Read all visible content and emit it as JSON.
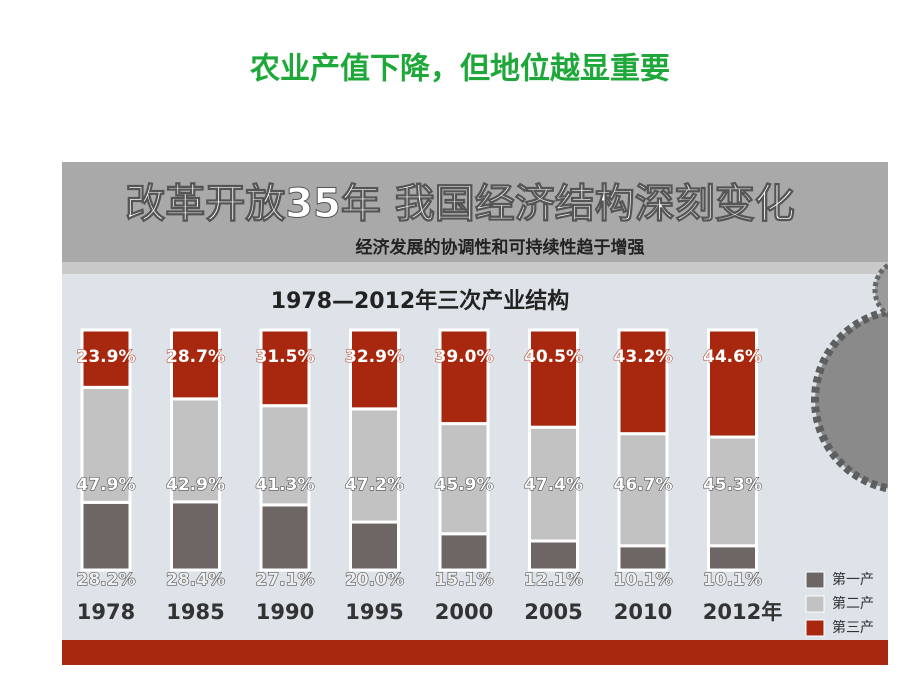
{
  "slide_title": "农业产值下降，但地位越显重要",
  "chart_data": {
    "type": "stacked-bar",
    "title": "改革开放35年  我国经济结构深刻变化",
    "subtitle": "经济发展的协调性和可持续性趋于增强",
    "chart_title": "1978—2012年三次产业结构",
    "categories": [
      "1978",
      "1985",
      "1990",
      "1995",
      "2000",
      "2005",
      "2010",
      "2012年"
    ],
    "series": [
      {
        "name": "第一产",
        "color": "#6e6664",
        "values": [
          28.2,
          28.4,
          27.1,
          20.0,
          15.1,
          12.1,
          10.1,
          10.1
        ],
        "value_labels": [
          "28.2%",
          "28.4%",
          "27.1%",
          "20.0%",
          "15.1%",
          "12.1%",
          "10.1%",
          "10.1%"
        ]
      },
      {
        "name": "第二产",
        "color": "#c2c2c2",
        "values": [
          47.9,
          42.9,
          41.3,
          47.2,
          45.9,
          47.4,
          46.7,
          45.3
        ],
        "value_labels": [
          "47.9%",
          "42.9%",
          "41.3%",
          "47.2%",
          "45.9%",
          "47.4%",
          "46.7%",
          "45.3%"
        ]
      },
      {
        "name": "第三产",
        "color": "#a8280f",
        "values": [
          23.9,
          28.7,
          31.5,
          32.9,
          39.0,
          40.5,
          43.2,
          44.6
        ],
        "value_labels": [
          "23.9%",
          "28.7%",
          "31.5%",
          "32.9%",
          "39.0%",
          "40.5%",
          "43.2%",
          "44.6%"
        ]
      }
    ]
  }
}
